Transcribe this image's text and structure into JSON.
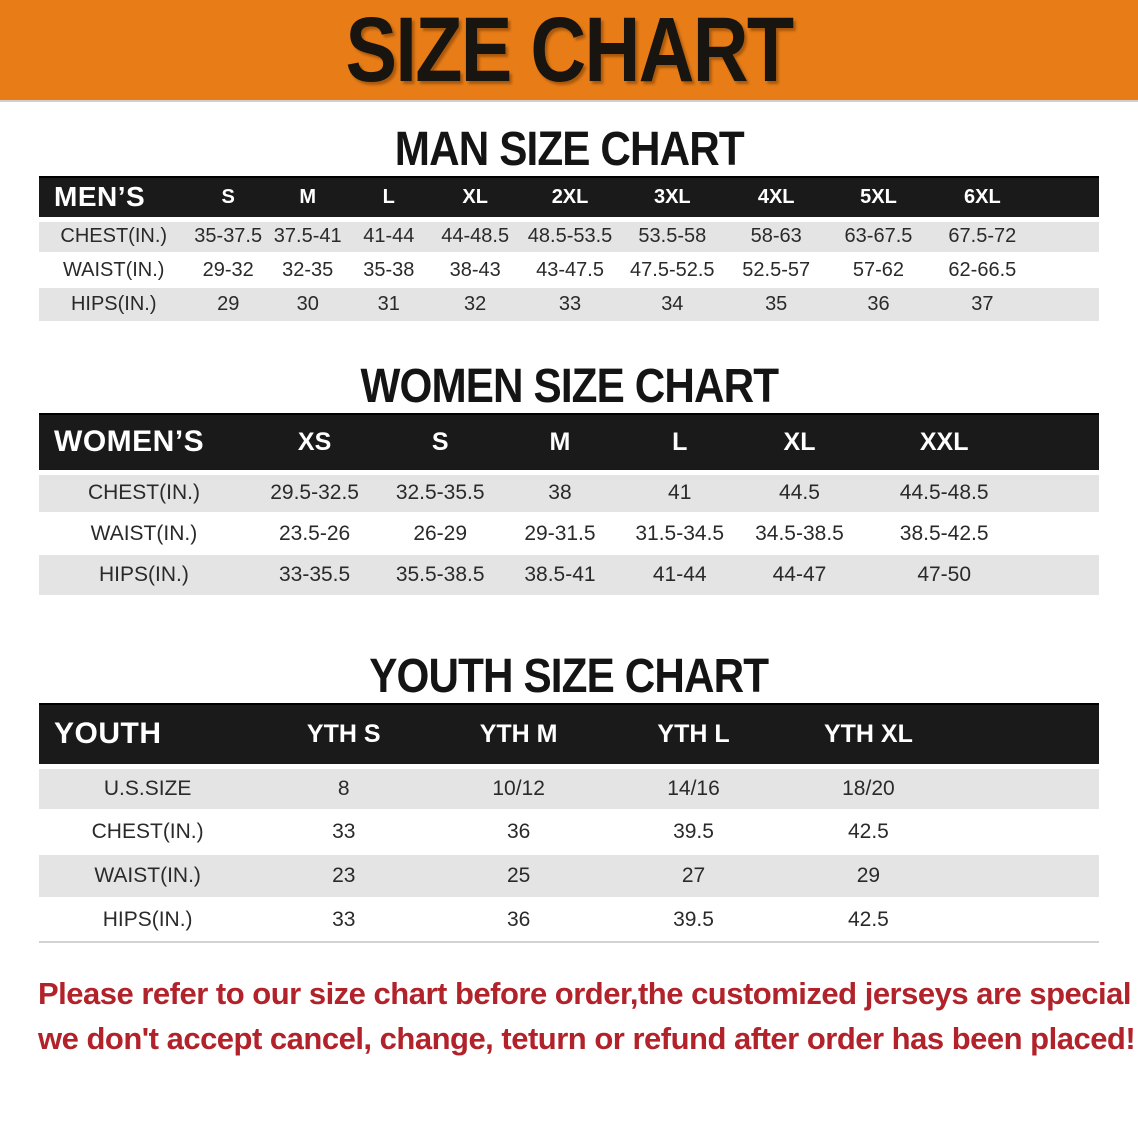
{
  "banner": {
    "title": "SIZE CHART",
    "background_color": "#e87d17",
    "text_color": "#181410"
  },
  "sections": {
    "men": {
      "heading": "MAN SIZE CHART",
      "table": {
        "label": "MEN’S",
        "columns": [
          "S",
          "M",
          "L",
          "XL",
          "2XL",
          "3XL",
          "4XL",
          "5XL",
          "6XL"
        ],
        "rows": [
          {
            "label": "CHEST(IN.)",
            "values": [
              "35-37.5",
              "37.5-41",
              "41-44",
              "44-48.5",
              "48.5-53.5",
              "53.5-58",
              "58-63",
              "63-67.5",
              "67.5-72"
            ]
          },
          {
            "label": "WAIST(IN.)",
            "values": [
              "29-32",
              "32-35",
              "35-38",
              "38-43",
              "43-47.5",
              "47.5-52.5",
              "52.5-57",
              "57-62",
              "62-66.5"
            ]
          },
          {
            "label": "HIPS(IN.)",
            "values": [
              "29",
              "30",
              "31",
              "32",
              "33",
              "34",
              "35",
              "36",
              "37"
            ]
          }
        ]
      }
    },
    "women": {
      "heading": "WOMEN SIZE CHART",
      "table": {
        "label": "WOMEN’S",
        "columns": [
          "XS",
          "S",
          "M",
          "L",
          "XL",
          "XXL"
        ],
        "rows": [
          {
            "label": "CHEST(IN.)",
            "values": [
              "29.5-32.5",
              "32.5-35.5",
              "38",
              "41",
              "44.5",
              "44.5-48.5"
            ]
          },
          {
            "label": "WAIST(IN.)",
            "values": [
              "23.5-26",
              "26-29",
              "29-31.5",
              "31.5-34.5",
              "34.5-38.5",
              "38.5-42.5"
            ]
          },
          {
            "label": "HIPS(IN.)",
            "values": [
              "33-35.5",
              "35.5-38.5",
              "38.5-41",
              "41-44",
              "44-47",
              "47-50"
            ]
          }
        ]
      }
    },
    "youth": {
      "heading": "YOUTH SIZE CHART",
      "table": {
        "label": "YOUTH",
        "columns": [
          "YTH S",
          "YTH M",
          "YTH L",
          "YTH XL"
        ],
        "rows": [
          {
            "label": "U.S.SIZE",
            "values": [
              "8",
              "10/12",
              "14/16",
              "18/20"
            ]
          },
          {
            "label": "CHEST(IN.)",
            "values": [
              "33",
              "36",
              "39.5",
              "42.5"
            ]
          },
          {
            "label": "WAIST(IN.)",
            "values": [
              "23",
              "25",
              "27",
              "29"
            ]
          },
          {
            "label": "HIPS(IN.)",
            "values": [
              "33",
              "36",
              "39.5",
              "42.5"
            ]
          }
        ]
      }
    }
  },
  "footer": {
    "text_color": "#b2222a",
    "lines": [
      "Please refer to our size chart before order,the customized jerseys are special products,",
      "we don't accept cancel, change, teturn or refund after order has been placed!"
    ]
  },
  "stripe_color": "#e4e4e4",
  "header_bar_color": "#1a1a1a"
}
